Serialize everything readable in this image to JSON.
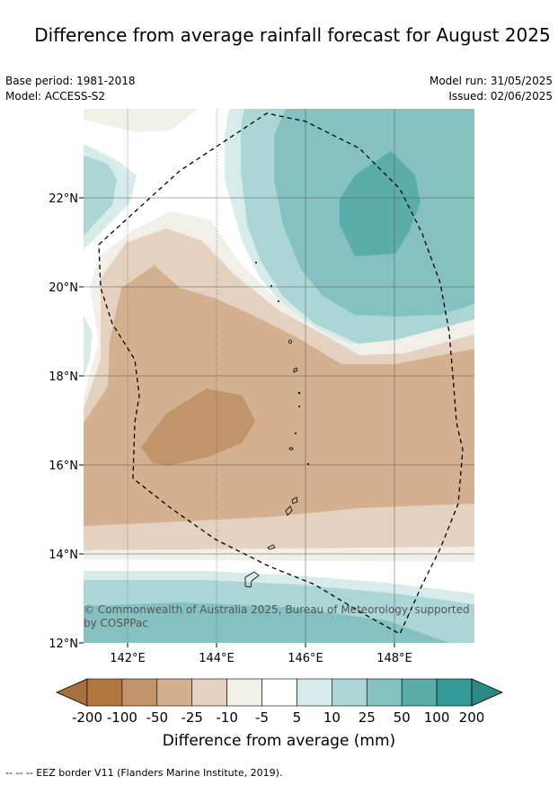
{
  "title": "Difference from average rainfall forecast for August 2025",
  "meta_left": {
    "base_period": "Base period: 1981-2018",
    "model": "Model: ACCESS-S2"
  },
  "meta_right": {
    "model_run": "Model run: 31/05/2025",
    "issued": "Issued: 02/06/2025"
  },
  "map": {
    "lon_ticks": [
      "142°E",
      "144°E",
      "146°E",
      "148°E"
    ],
    "lat_ticks": [
      "22°N",
      "20°N",
      "18°N",
      "16°N",
      "14°N",
      "12°N"
    ],
    "copyright": "© Commonwealth of Australia 2025, Bureau of Meteorology, supported by COSPPac"
  },
  "colorbar": {
    "ticks": [
      "-200",
      "-100",
      "-50",
      "-25",
      "-10",
      "-5",
      "5",
      "10",
      "25",
      "50",
      "100",
      "200"
    ],
    "colors": [
      "#a8703a",
      "#b2773f",
      "#c29469",
      "#d3b08f",
      "#e5d1bf",
      "#f2eee8",
      "#ffffff",
      "#d7ebea",
      "#acd6d5",
      "#84c1c0",
      "#5aadab",
      "#339a98",
      "#2b8a86"
    ],
    "label": "Difference from average (mm)"
  },
  "footnote": "--  --  -- EEZ border V11 (Flanders Marine Institute, 2019)."
}
